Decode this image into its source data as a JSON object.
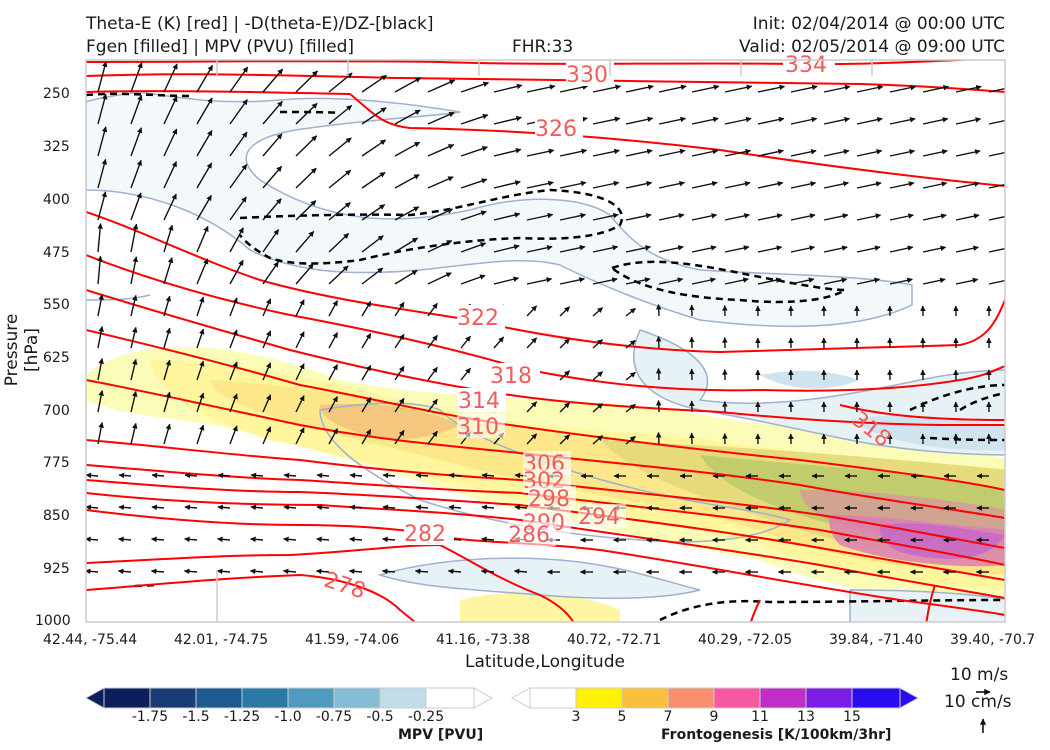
{
  "header": {
    "left_line1": "Theta-E (K) [red] | -D(theta-E)/DZ-[black]",
    "left_line2": "Fgen [filled] | MPV (PVU) [filled]",
    "center": "FHR:33",
    "right_line1": "Init: 02/04/2014 @ 00:00 UTC",
    "right_line2": "Valid: 02/05/2014 @ 09:00 UTC"
  },
  "chart_data": {
    "type": "cross-section",
    "ylabel": "Pressure [hPa]",
    "xlabel": "Latitude,Longitude",
    "y_ticks": [
      "250",
      "325",
      "400",
      "475",
      "550",
      "625",
      "700",
      "775",
      "850",
      "925",
      "1000"
    ],
    "x_ticks": [
      "42.44, -75.44",
      "42.01, -74.75",
      "41.59, -74.06",
      "41.16, -73.38",
      "40.72, -72.71",
      "40.29, -72.05",
      "39.84, -71.40",
      "39.40, -70.7"
    ],
    "ylim": [
      1000,
      200
    ],
    "theta_e_labels": [
      "334",
      "330",
      "326",
      "322",
      "318",
      "314",
      "310",
      "306",
      "302",
      "298",
      "294",
      "290",
      "286",
      "282",
      "278",
      "318"
    ],
    "colors": {
      "theta_e": "#ff0000",
      "theta_e_label": "#f25c5c",
      "mpv_outline": "#9fb0d0",
      "grid": "#cccccc"
    }
  },
  "colorbars": {
    "mpv": {
      "title": "MPV [PVU]",
      "ticks": [
        "-1.75",
        "-1.5",
        "-1.25",
        "-1.0",
        "-0.75",
        "-0.5",
        "-0.25"
      ],
      "colors": [
        "#0c1f5c",
        "#173c78",
        "#1d5a8f",
        "#2b7aa6",
        "#4f9bbf",
        "#85bdd6",
        "#bfdce8",
        "#ffffff"
      ]
    },
    "fgen": {
      "title": "Frontogenesis [K/100km/3hr]",
      "ticks": [
        "3",
        "5",
        "7",
        "9",
        "11",
        "13",
        "15"
      ],
      "colors": [
        "#ffffff",
        "#fff200",
        "#fbbf40",
        "#f89070",
        "#f55aa0",
        "#c02ec8",
        "#7a1ee6",
        "#2a0cf2"
      ]
    }
  },
  "quiver_key": {
    "horizontal": "10 m/s",
    "vertical": "10 cm/s"
  }
}
